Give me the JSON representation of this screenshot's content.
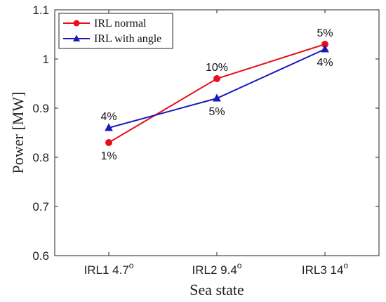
{
  "chart_data": {
    "type": "line",
    "title": "",
    "xlabel": "Sea state",
    "ylabel": "Power [MW]",
    "ylim": [
      0.6,
      1.1
    ],
    "yticks": [
      "0.6",
      "0.7",
      "0.8",
      "0.9",
      "1",
      "1.1"
    ],
    "categories": [
      {
        "base": "IRL1 4.7",
        "sup": "o"
      },
      {
        "base": "IRL2 9.4",
        "sup": "o"
      },
      {
        "base": "IRL3 14",
        "sup": "o"
      }
    ],
    "legend_position": "top-left",
    "grid": false,
    "series": [
      {
        "name": "IRL normal",
        "color": "#e8101c",
        "marker": "circle",
        "values": [
          0.83,
          0.96,
          1.03
        ],
        "labels": [
          "1%",
          "10%",
          "5%"
        ],
        "label_positions": [
          "below",
          "above",
          "above"
        ]
      },
      {
        "name": "IRL with angle",
        "color": "#1a1ab8",
        "marker": "triangle",
        "values": [
          0.86,
          0.92,
          1.02
        ],
        "labels": [
          "4%",
          "5%",
          "4%"
        ],
        "label_positions": [
          "above",
          "below",
          "below"
        ]
      }
    ]
  }
}
